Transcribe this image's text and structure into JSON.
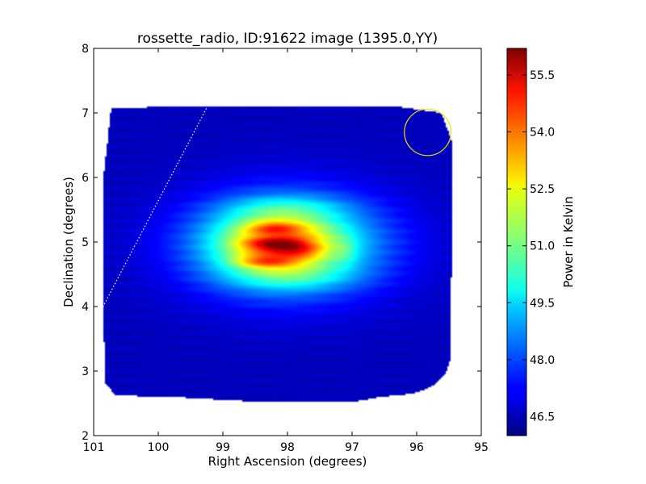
{
  "chart_data": {
    "type": "heatmap",
    "title": "rossette_radio, ID:91622 image (1395.0,YY)",
    "xlabel": "Right Ascension (degrees)",
    "ylabel": "Declination (degrees)",
    "xlim": [
      101,
      95
    ],
    "ylim": [
      2,
      8
    ],
    "x_ticks": [
      "101",
      "100",
      "99",
      "98",
      "97",
      "96",
      "95"
    ],
    "y_ticks": [
      "2",
      "3",
      "4",
      "5",
      "6",
      "7",
      "8"
    ],
    "colorbar": {
      "label": "Power in Kelvin",
      "colormap": "jet",
      "range": [
        46.0,
        56.2
      ],
      "ticks": [
        "46.5",
        "48.0",
        "49.5",
        "51.0",
        "52.5",
        "54.0",
        "55.5"
      ]
    },
    "background_level": 46.6,
    "coverage_polygon": [
      [
        100.73,
        7.08
      ],
      [
        99.25,
        7.1
      ],
      [
        96.3,
        7.1
      ],
      [
        95.62,
        7.0
      ],
      [
        95.45,
        6.55
      ],
      [
        95.47,
        3.2
      ],
      [
        95.55,
        2.95
      ],
      [
        95.78,
        2.75
      ],
      [
        96.05,
        2.65
      ],
      [
        96.55,
        2.6
      ],
      [
        97.0,
        2.52
      ],
      [
        98.4,
        2.52
      ],
      [
        99.8,
        2.6
      ],
      [
        100.65,
        2.62
      ],
      [
        100.82,
        2.8
      ],
      [
        100.85,
        3.9
      ],
      [
        100.85,
        6.0
      ],
      [
        100.78,
        6.6
      ]
    ],
    "emission_blobs": [
      {
        "ra": 98.0,
        "dec": 4.95,
        "sigma_ra": 1.05,
        "sigma_dec": 0.55,
        "peak": 4.2
      },
      {
        "ra": 98.15,
        "dec": 5.0,
        "sigma_ra": 0.65,
        "sigma_dec": 0.33,
        "peak": 3.4
      },
      {
        "ra": 98.2,
        "dec": 5.22,
        "sigma_ra": 0.28,
        "sigma_dec": 0.06,
        "peak": 1.8
      },
      {
        "ra": 98.15,
        "dec": 4.96,
        "sigma_ra": 0.33,
        "sigma_dec": 0.07,
        "peak": 2.4
      },
      {
        "ra": 98.35,
        "dec": 4.7,
        "sigma_ra": 0.33,
        "sigma_dec": 0.07,
        "peak": 2.0
      },
      {
        "ra": 97.8,
        "dec": 4.85,
        "sigma_ra": 0.25,
        "sigma_dec": 0.07,
        "peak": 1.2
      },
      {
        "ra": 98.0,
        "dec": 5.55,
        "sigma_ra": 0.7,
        "sigma_dec": 0.12,
        "peak": 0.8
      },
      {
        "ra": 97.95,
        "dec": 4.45,
        "sigma_ra": 0.75,
        "sigma_dec": 0.14,
        "peak": 0.9
      },
      {
        "ra": 97.1,
        "dec": 4.85,
        "sigma_ra": 0.12,
        "sigma_dec": 0.15,
        "peak": 0.6
      }
    ],
    "annotations": [
      {
        "type": "dotted_line",
        "color": "#ffffff",
        "from": [
          100.88,
          3.95
        ],
        "to": [
          99.25,
          7.08
        ]
      },
      {
        "type": "circle",
        "color": "#e6e600",
        "center": [
          95.83,
          6.7
        ],
        "radius_deg": 0.36
      }
    ]
  }
}
